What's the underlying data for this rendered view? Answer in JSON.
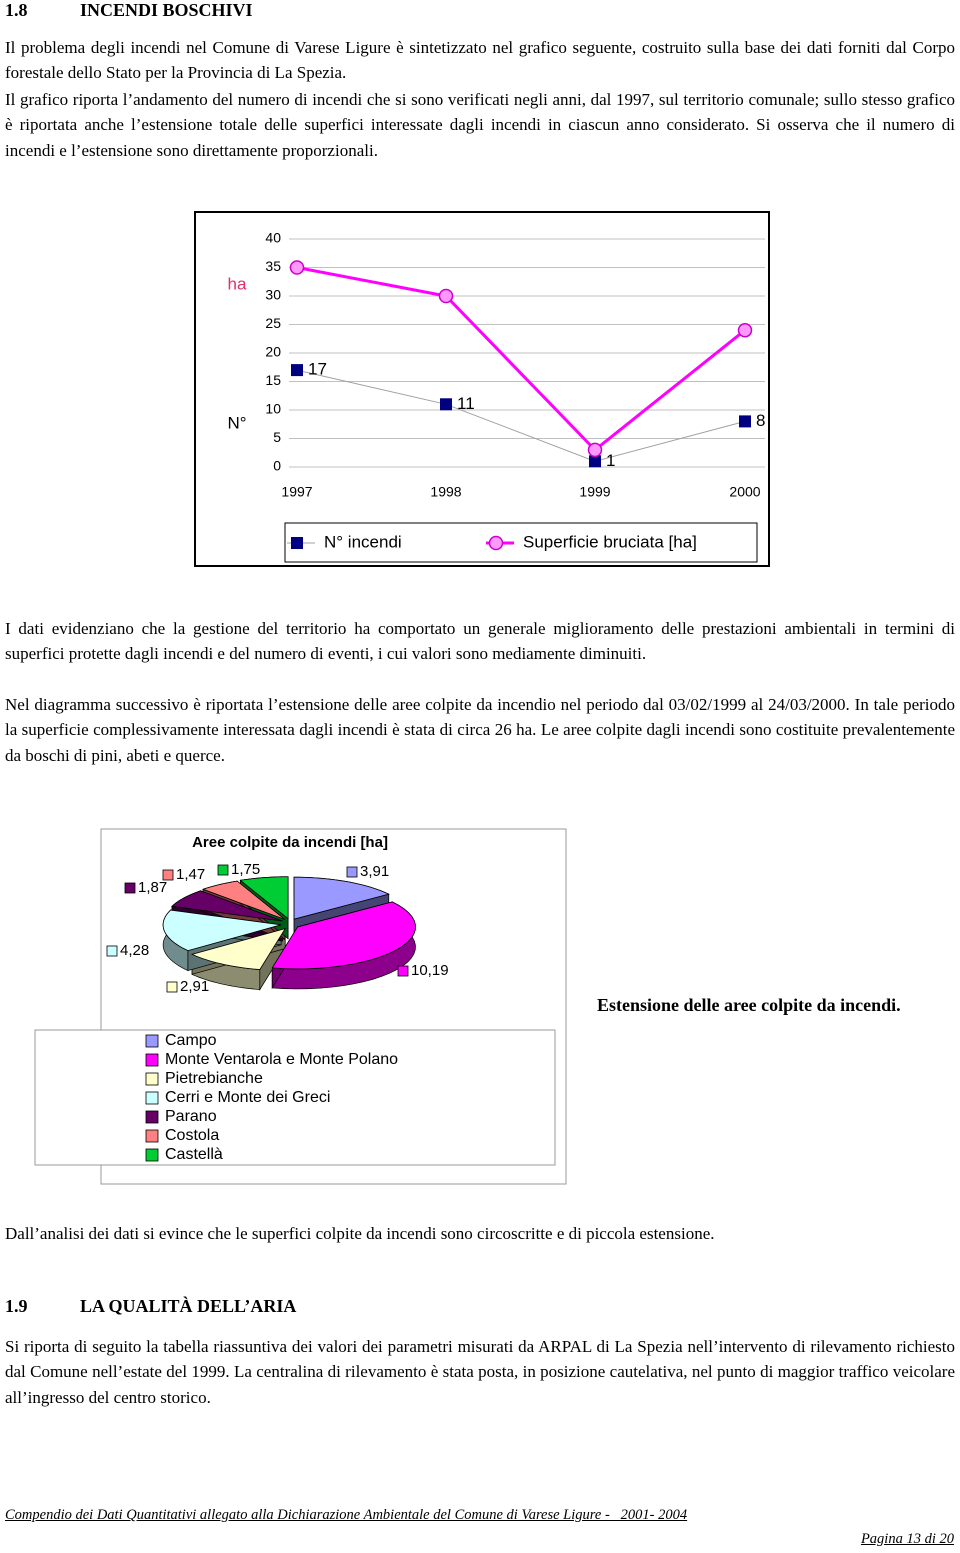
{
  "section_1": {
    "number": "1.8",
    "title": "INCENDI BOSCHIVI"
  },
  "paragraphs_1": [
    "Il problema degli incendi nel Comune di Varese Ligure è sintetizzato nel grafico seguente, costruito sulla base dei dati forniti dal Corpo forestale dello Stato per la Provincia di La Spezia.",
    "Il grafico riporta l’andamento del numero di incendi che si sono verificati negli anni, dal 1997, sul territorio comunale; sullo stesso grafico è riportata anche l’estensione totale delle superfici interessate dagli incendi in ciascun anno considerato. Si osserva che il numero di incendi e l’estensione sono direttamente proporzionali."
  ],
  "paragraphs_2": [
    "I dati evidenziano che la gestione del territorio ha comportato un generale miglioramento delle prestazioni ambientali in termini di superfici protette dagli incendi e del numero di eventi, i cui valori sono mediamente diminuiti.",
    "Nel diagramma successivo è riportata l’estensione delle aree colpite da incendio nel periodo dal 03/02/1999 al 24/03/2000. In tale periodo la superficie complessivamente interessata dagli incendi è stata di circa 26 ha. Le aree colpite dagli incendi sono costituite prevalentemente da boschi di pini, abeti e querce."
  ],
  "pie_caption": "Estensione delle aree colpite da incendi.",
  "paragraph_3": "Dall’analisi dei dati si evince che le superfici colpite da incendi sono circoscritte e di piccola estensione.",
  "section_2": {
    "number": "1.9",
    "title": "LA QUALITÀ DELL’ARIA"
  },
  "paragraph_4": "Si riporta di seguito la tabella riassuntiva dei valori dei parametri misurati da ARPAL di La Spezia nell’intervento di rilevamento richiesto dal Comune nell’estate del 1999. La centralina di rilevamento è stata posta, in posizione cautelativa, nel punto di maggior traffico veicolare all’ingresso del centro storico.",
  "footer": {
    "text": "Compendio dei Dati Quantitativi allegato alla Dichiarazione Ambientale del Comune di Varese Ligure -   2001- 2004",
    "page": "Pagina 13 di 20"
  },
  "chart_data": [
    {
      "type": "line",
      "categories": [
        "1997",
        "1998",
        "1999",
        "2000"
      ],
      "y_labels": [
        "ha",
        "N°"
      ],
      "ylim": [
        0,
        40
      ],
      "yticks": [
        0,
        5,
        10,
        15,
        20,
        25,
        30,
        35,
        40
      ],
      "grid": true,
      "series": [
        {
          "name": "N° incendi",
          "color": "#000080",
          "values": [
            17,
            11,
            1,
            8
          ]
        },
        {
          "name": "Superficie bruciata [ha]",
          "color": "#ff00ff",
          "values": [
            35,
            30,
            3,
            24
          ]
        }
      ]
    },
    {
      "type": "pie",
      "title": "Aree colpite da incendi  [ha]",
      "categories": [
        "Campo",
        "Monte Ventarola e Monte Polano",
        "Pietrebianche",
        "Cerri e Monte dei Greci",
        "Parano",
        "Costola",
        "Castellà"
      ],
      "values": [
        3.91,
        10.19,
        2.91,
        4.28,
        1.87,
        1.47,
        1.75
      ],
      "value_labels": [
        "3,91",
        "10,19",
        "2,91",
        "4,28",
        "1,87",
        "1,47",
        "1,75"
      ],
      "colors": [
        "#9999ff",
        "#ff00ff",
        "#ffffcc",
        "#ccffff",
        "#660066",
        "#ff8080",
        "#00cc33"
      ]
    }
  ]
}
